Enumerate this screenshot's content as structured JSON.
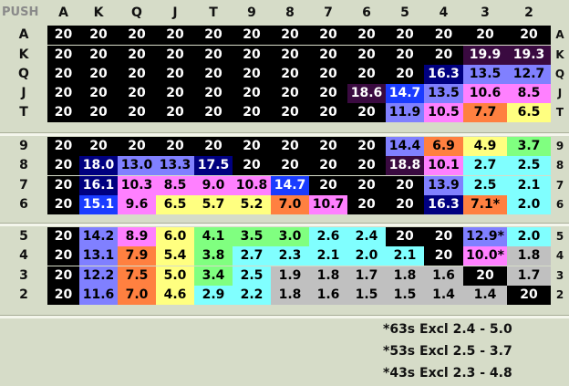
{
  "title": "PUSH",
  "ranks": [
    "A",
    "K",
    "Q",
    "J",
    "T",
    "9",
    "8",
    "7",
    "6",
    "5",
    "4",
    "3",
    "2"
  ],
  "rows": [
    [
      "20",
      "20",
      "20",
      "20",
      "20",
      "20",
      "20",
      "20",
      "20",
      "20",
      "20",
      "20",
      "20"
    ],
    [
      "20",
      "20",
      "20",
      "20",
      "20",
      "20",
      "20",
      "20",
      "20",
      "20",
      "20",
      "19.9",
      "19.3"
    ],
    [
      "20",
      "20",
      "20",
      "20",
      "20",
      "20",
      "20",
      "20",
      "20",
      "20",
      "16.3",
      "13.5",
      "12.7"
    ],
    [
      "20",
      "20",
      "20",
      "20",
      "20",
      "20",
      "20",
      "20",
      "18.6",
      "14.7",
      "13.5",
      "10.6",
      "8.5"
    ],
    [
      "20",
      "20",
      "20",
      "20",
      "20",
      "20",
      "20",
      "20",
      "20",
      "11.9",
      "10.5",
      "7.7",
      "6.5"
    ],
    [
      "20",
      "20",
      "20",
      "20",
      "20",
      "20",
      "20",
      "20",
      "20",
      "14.4",
      "6.9",
      "4.9",
      "3.7"
    ],
    [
      "20",
      "18.0",
      "13.0",
      "13.3",
      "17.5",
      "20",
      "20",
      "20",
      "20",
      "18.8",
      "10.1",
      "2.7",
      "2.5"
    ],
    [
      "20",
      "16.1",
      "10.3",
      "8.5",
      "9.0",
      "10.8",
      "14.7",
      "20",
      "20",
      "20",
      "13.9",
      "2.5",
      "2.1"
    ],
    [
      "20",
      "15.1",
      "9.6",
      "6.5",
      "5.7",
      "5.2",
      "7.0",
      "10.7",
      "20",
      "20",
      "16.3",
      "7.1*",
      "2.0"
    ],
    [
      "20",
      "14.2",
      "8.9",
      "6.0",
      "4.1",
      "3.5",
      "3.0",
      "2.6",
      "2.4",
      "20",
      "20",
      "12.9*",
      "2.0"
    ],
    [
      "20",
      "13.1",
      "7.9",
      "5.4",
      "3.8",
      "2.7",
      "2.3",
      "2.1",
      "2.0",
      "2.1",
      "20",
      "10.0*",
      "1.8"
    ],
    [
      "20",
      "12.2",
      "7.5",
      "5.0",
      "3.4",
      "2.5",
      "1.9",
      "1.8",
      "1.7",
      "1.8",
      "1.6",
      "20",
      "1.7"
    ],
    [
      "20",
      "11.6",
      "7.0",
      "4.6",
      "2.9",
      "2.2",
      "1.8",
      "1.6",
      "1.5",
      "1.5",
      "1.4",
      "1.4",
      "20"
    ]
  ],
  "colors": {
    "black": "#000000",
    "purple_dark": "#3a0a40",
    "navy": "#000080",
    "blue": "#1a3cff",
    "periwinkle": "#8080ff",
    "pink": "#ff80ff",
    "orange": "#ff8040",
    "yellow": "#ffff80",
    "green": "#80ff80",
    "cyan": "#80ffff",
    "gray": "#c0c0c0"
  },
  "footnotes": [
    "*63s  Excl 2.4 - 5.0",
    "*53s  Excl 2.5 - 3.7",
    "*43s  Excl 2.3 - 4.8"
  ]
}
